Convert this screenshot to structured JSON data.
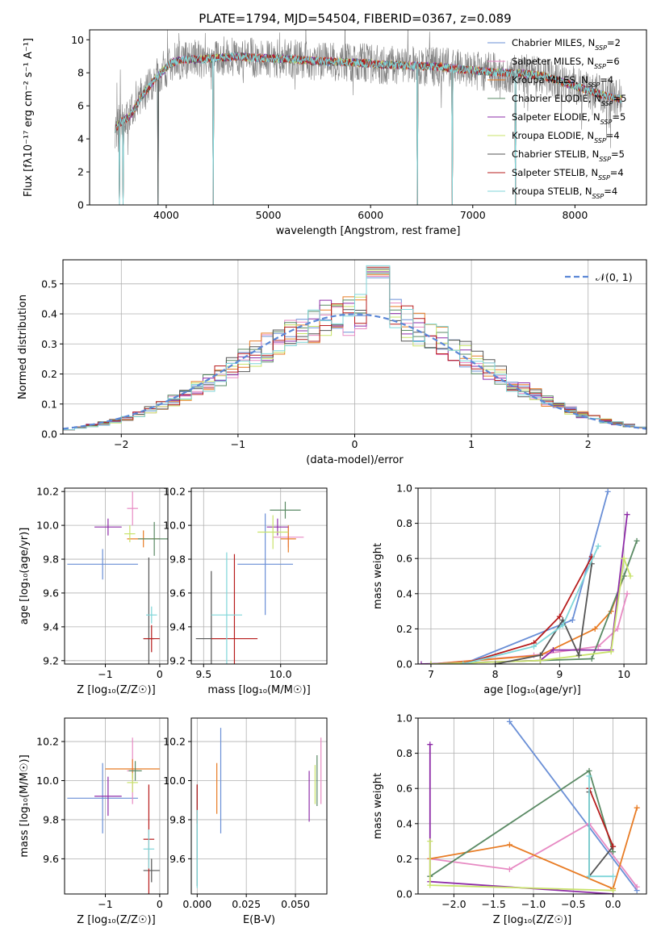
{
  "colors": {
    "palette": [
      "#6a8fd6",
      "#e78ac3",
      "#e87c25",
      "#5a8a64",
      "#8e2ca8",
      "#c8e36a",
      "#555555",
      "#b71c1c",
      "#7fd6d9"
    ],
    "spectrum": "#808080",
    "grid": "#b0b0b0"
  },
  "chart_data": [
    {
      "id": "spectrum",
      "type": "line",
      "title": "PLATE=1794, MJD=54504, FIBERID=0367, z=0.089",
      "xlabel": "wavelength [Angstrom, rest frame]",
      "ylabel": "Flux [fλ10⁻¹⁷ erg cm⁻² s⁻¹ A⁻¹]",
      "xlim": [
        3250,
        8700
      ],
      "ylim": [
        0,
        10.6
      ],
      "xticks": [
        4000,
        5000,
        6000,
        7000,
        8000
      ],
      "yticks": [
        0,
        2,
        4,
        6,
        8,
        10
      ],
      "grid": false,
      "legend_position": "top-right",
      "legend": [
        "Chabrier MILES, N_SSP=2",
        "Salpeter MILES, N_SSP=6",
        "Kroupa MILES, N_SSP=4",
        "Chabrier ELODIE, N_SSP=5",
        "Salpeter ELODIE, N_SSP=5",
        "Kroupa ELODIE, N_SSP=4",
        "Chabrier STELIB, N_SSP=5",
        "Salpeter STELIB, N_SSP=4",
        "Kroupa STELIB, N_SSP=4"
      ],
      "model_continuum": {
        "x": [
          3500,
          3550,
          3650,
          3750,
          3850,
          3950,
          4050,
          4150,
          4300,
          4500,
          4700,
          4900,
          5100,
          5300,
          5500,
          5700,
          5900,
          6100,
          6300,
          6500,
          6700,
          6900,
          7100,
          7300,
          7500,
          7700,
          7900,
          8100,
          8300,
          8450
        ],
        "y": [
          4.6,
          5.0,
          5.4,
          6.5,
          7.3,
          8.0,
          8.6,
          8.8,
          8.8,
          8.9,
          9.0,
          8.9,
          8.85,
          8.8,
          8.7,
          8.65,
          8.6,
          8.5,
          8.45,
          8.4,
          8.35,
          8.2,
          8.1,
          8.0,
          7.95,
          7.8,
          7.4,
          7.0,
          6.6,
          6.4
        ]
      },
      "model_dips": [
        [
          3540,
          0
        ],
        [
          3580,
          0
        ],
        [
          4460,
          0
        ],
        [
          6460,
          0
        ],
        [
          6800,
          0
        ],
        [
          7420,
          0
        ],
        [
          3920,
          0
        ]
      ]
    },
    {
      "id": "residuals",
      "type": "bar",
      "xlabel": "(data-model)/error",
      "ylabel": "Normed distribution",
      "xlim": [
        -2.5,
        2.5
      ],
      "ylim": [
        0,
        0.58
      ],
      "xticks": [
        -2,
        -1,
        0,
        1,
        2
      ],
      "yticks": [
        0.0,
        0.1,
        0.2,
        0.3,
        0.4,
        0.5
      ],
      "grid": true,
      "legend_position": "top-right",
      "legend": [
        "𝒩(0, 1)"
      ],
      "bin_width": 0.1
    },
    {
      "id": "age_vs_z",
      "type": "scatter",
      "xlabel": "Z [log₁₀(Z/Z☉)]",
      "ylabel": "age  [log₁₀(age/yr)]",
      "xlim": [
        -1.75,
        0.15
      ],
      "ylim": [
        9.18,
        10.22
      ],
      "xticks": [
        -1,
        0
      ],
      "yticks": [
        9.2,
        9.4,
        9.6,
        9.8,
        10.0,
        10.2
      ],
      "grid": true,
      "points": [
        {
          "x": -1.05,
          "y": 9.77,
          "xerr": 0.65,
          "yerr": 0.09,
          "series": 0
        },
        {
          "x": -0.5,
          "y": 10.1,
          "xerr": 0.1,
          "yerr": 0.1,
          "series": 1
        },
        {
          "x": -0.3,
          "y": 9.92,
          "xerr": 0.3,
          "yerr": 0.05,
          "series": 2
        },
        {
          "x": -0.1,
          "y": 9.92,
          "xerr": 0.3,
          "yerr": 0.1,
          "series": 3
        },
        {
          "x": -0.95,
          "y": 9.99,
          "xerr": 0.25,
          "yerr": 0.05,
          "series": 4
        },
        {
          "x": -0.55,
          "y": 9.95,
          "xerr": 0.1,
          "yerr": 0.05,
          "series": 5
        },
        {
          "x": -0.2,
          "y": 9.33,
          "xerr": 0.1,
          "yerr": 0.48,
          "series": 6
        },
        {
          "x": -0.15,
          "y": 9.33,
          "xerr": 0.15,
          "yerr": 0.08,
          "series": 7
        },
        {
          "x": -0.15,
          "y": 9.47,
          "xerr": 0.1,
          "yerr": 0.05,
          "series": 8
        }
      ]
    },
    {
      "id": "age_vs_mass",
      "type": "scatter",
      "xlabel": "mass [log₁₀(M/M☉)]",
      "ylabel": "",
      "xlim": [
        9.42,
        10.3
      ],
      "ylim": [
        9.18,
        10.22
      ],
      "xticks": [
        9.5,
        10.0
      ],
      "yticks": [
        9.2,
        9.4,
        9.6,
        9.8,
        10.0,
        10.2
      ],
      "grid": true,
      "points": [
        {
          "x": 9.9,
          "y": 9.77,
          "xerr": 0.18,
          "yerr": 0.3,
          "series": 0
        },
        {
          "x": 10.05,
          "y": 9.93,
          "xerr": 0.1,
          "yerr": 0.06,
          "series": 1
        },
        {
          "x": 10.05,
          "y": 9.92,
          "xerr": 0.05,
          "yerr": 0.08,
          "series": 2
        },
        {
          "x": 10.03,
          "y": 10.09,
          "xerr": 0.1,
          "yerr": 0.05,
          "series": 3
        },
        {
          "x": 9.98,
          "y": 9.99,
          "xerr": 0.07,
          "yerr": 0.05,
          "series": 4
        },
        {
          "x": 9.95,
          "y": 9.96,
          "xerr": 0.1,
          "yerr": 0.1,
          "series": 5
        },
        {
          "x": 9.55,
          "y": 9.33,
          "xerr": 0.1,
          "yerr": 0.4,
          "series": 6
        },
        {
          "x": 9.7,
          "y": 9.33,
          "xerr": 0.15,
          "yerr": 0.5,
          "series": 7
        },
        {
          "x": 9.65,
          "y": 9.47,
          "xerr": 0.1,
          "yerr": 0.37,
          "series": 8
        }
      ]
    },
    {
      "id": "weight_vs_age",
      "type": "line",
      "xlabel": "age  [log₁₀(age/yr)]",
      "ylabel": "mass weight",
      "xlim": [
        6.8,
        10.35
      ],
      "ylim": [
        0,
        1.0
      ],
      "xticks": [
        7,
        8,
        9,
        10
      ],
      "yticks": [
        0.0,
        0.2,
        0.4,
        0.6,
        0.8,
        1.0
      ],
      "grid": true,
      "series": [
        {
          "series": 0,
          "x": [
            7.5,
            9.2,
            9.75
          ],
          "y": [
            0.0,
            0.25,
            0.98
          ]
        },
        {
          "series": 1,
          "x": [
            7.0,
            8.6,
            9.6,
            9.9,
            10.05
          ],
          "y": [
            0.0,
            0.05,
            0.1,
            0.2,
            0.4
          ]
        },
        {
          "series": 2,
          "x": [
            7.0,
            8.7,
            9.55,
            9.8,
            10.0
          ],
          "y": [
            0.0,
            0.05,
            0.2,
            0.3,
            0.5
          ]
        },
        {
          "series": 3,
          "x": [
            7.0,
            8.7,
            9.5,
            10.0,
            10.2
          ],
          "y": [
            0.0,
            0.02,
            0.03,
            0.5,
            0.7
          ]
        },
        {
          "series": 4,
          "x": [
            6.85,
            8.7,
            8.9,
            9.8,
            10.05
          ],
          "y": [
            0.0,
            0.02,
            0.08,
            0.08,
            0.85
          ]
        },
        {
          "series": 5,
          "x": [
            7.0,
            8.7,
            9.8,
            10.0,
            10.1
          ],
          "y": [
            0.0,
            0.02,
            0.07,
            0.6,
            0.5
          ]
        },
        {
          "series": 6,
          "x": [
            8.0,
            8.7,
            9.05,
            9.3,
            9.5
          ],
          "y": [
            0.0,
            0.05,
            0.25,
            0.05,
            0.57
          ]
        },
        {
          "series": 7,
          "x": [
            7.5,
            8.6,
            9.0,
            9.5
          ],
          "y": [
            0.0,
            0.12,
            0.27,
            0.61
          ]
        },
        {
          "series": 8,
          "x": [
            7.5,
            8.6,
            9.05,
            9.6
          ],
          "y": [
            0.0,
            0.1,
            0.22,
            0.67
          ]
        }
      ]
    },
    {
      "id": "mass_vs_z",
      "type": "scatter",
      "xlabel": "Z [log₁₀(Z/Z☉)]",
      "ylabel": "mass [log₁₀(M/M☉)]",
      "xlim": [
        -1.75,
        0.15
      ],
      "ylim": [
        9.42,
        10.32
      ],
      "xticks": [
        -1,
        0
      ],
      "yticks": [
        9.6,
        9.8,
        10.0,
        10.2
      ],
      "grid": true,
      "points": [
        {
          "x": -1.05,
          "y": 9.91,
          "xerr": 0.65,
          "yerr": 0.18,
          "series": 0
        },
        {
          "x": -0.5,
          "y": 10.05,
          "xerr": 0.1,
          "yerr": 0.17,
          "series": 1
        },
        {
          "x": -0.5,
          "y": 10.06,
          "xerr": 0.5,
          "yerr": 0.05,
          "series": 2
        },
        {
          "x": -0.45,
          "y": 10.05,
          "xerr": 0.12,
          "yerr": 0.05,
          "series": 3
        },
        {
          "x": -0.95,
          "y": 9.92,
          "xerr": 0.25,
          "yerr": 0.1,
          "series": 4
        },
        {
          "x": -0.5,
          "y": 9.99,
          "xerr": 0.1,
          "yerr": 0.05,
          "series": 5
        },
        {
          "x": -0.15,
          "y": 9.54,
          "xerr": 0.15,
          "yerr": 0.06,
          "series": 6
        },
        {
          "x": -0.2,
          "y": 9.7,
          "xerr": 0.1,
          "yerr": 0.28,
          "series": 7
        },
        {
          "x": -0.2,
          "y": 9.65,
          "xerr": 0.1,
          "yerr": 0.1,
          "series": 8
        }
      ]
    },
    {
      "id": "mass_vs_ebv",
      "type": "scatter",
      "xlabel": "E(B-V)",
      "ylabel": "",
      "xlim": [
        -0.003,
        0.066
      ],
      "ylim": [
        9.42,
        10.32
      ],
      "xticks": [
        0.0,
        0.025,
        0.05
      ],
      "xticklabels": [
        "0.000",
        "0.025",
        "0.050"
      ],
      "yticks": [
        9.6,
        9.8,
        10.0,
        10.2
      ],
      "grid": true,
      "points": [
        {
          "x": 0.012,
          "y": 10.0,
          "xerr": 0,
          "yerr": 0.27,
          "series": 0
        },
        {
          "x": 0.063,
          "y": 10.05,
          "xerr": 0,
          "yerr": 0.17,
          "series": 1
        },
        {
          "x": 0.01,
          "y": 9.96,
          "xerr": 0,
          "yerr": 0.13,
          "series": 2
        },
        {
          "x": 0.061,
          "y": 10.0,
          "xerr": 0,
          "yerr": 0.13,
          "series": 3
        },
        {
          "x": 0.057,
          "y": 9.92,
          "xerr": 0,
          "yerr": 0.13,
          "series": 4
        },
        {
          "x": 0.06,
          "y": 9.98,
          "xerr": 0,
          "yerr": 0.1,
          "series": 5
        },
        {
          "x": 0.0,
          "y": 9.72,
          "xerr": 0,
          "yerr": 0.26,
          "series": 6
        },
        {
          "x": 0.0,
          "y": 9.88,
          "xerr": 0,
          "yerr": 0.1,
          "series": 7
        },
        {
          "x": 0.0,
          "y": 9.65,
          "xerr": 0,
          "yerr": 0.2,
          "series": 8
        }
      ]
    },
    {
      "id": "weight_vs_z",
      "type": "line",
      "xlabel": "Z [log₁₀(Z/Z☉)]",
      "ylabel": "mass weight",
      "xlim": [
        -2.45,
        0.42
      ],
      "ylim": [
        0,
        1.0
      ],
      "xticks": [
        -2.0,
        -1.5,
        -1.0,
        -0.5,
        0.0
      ],
      "xticklabels": [
        "−2.0",
        "−1.5",
        "−1.0",
        "−0.5",
        "0.0"
      ],
      "yticks": [
        0.0,
        0.2,
        0.4,
        0.6,
        0.8,
        1.0
      ],
      "grid": true,
      "series": [
        {
          "series": 0,
          "x": [
            -1.3,
            0.3
          ],
          "y": [
            0.98,
            0.02
          ]
        },
        {
          "series": 1,
          "x": [
            -2.3,
            -1.3,
            -0.3,
            0.3
          ],
          "y": [
            0.2,
            0.14,
            0.4,
            0.04
          ]
        },
        {
          "series": 2,
          "x": [
            -2.3,
            -1.3,
            0.0,
            0.3
          ],
          "y": [
            0.2,
            0.28,
            0.03,
            0.49
          ]
        },
        {
          "series": 3,
          "x": [
            -2.3,
            -0.3,
            0.0
          ],
          "y": [
            0.1,
            0.7,
            0.24
          ]
        },
        {
          "series": 4,
          "x": [
            -2.3,
            -2.3,
            0.0
          ],
          "y": [
            0.85,
            0.07,
            0.0
          ]
        },
        {
          "series": 5,
          "x": [
            -2.3,
            -2.3,
            0.0
          ],
          "y": [
            0.3,
            0.05,
            0.02
          ]
        },
        {
          "series": 6,
          "x": [
            -0.3,
            -0.3,
            0.0
          ],
          "y": [
            0.58,
            0.1,
            0.27
          ]
        },
        {
          "series": 7,
          "x": [
            -0.3,
            0.0
          ],
          "y": [
            0.6,
            0.27
          ]
        },
        {
          "series": 8,
          "x": [
            -0.3,
            -0.3,
            0.0
          ],
          "y": [
            0.67,
            0.1,
            0.1
          ]
        }
      ]
    }
  ]
}
